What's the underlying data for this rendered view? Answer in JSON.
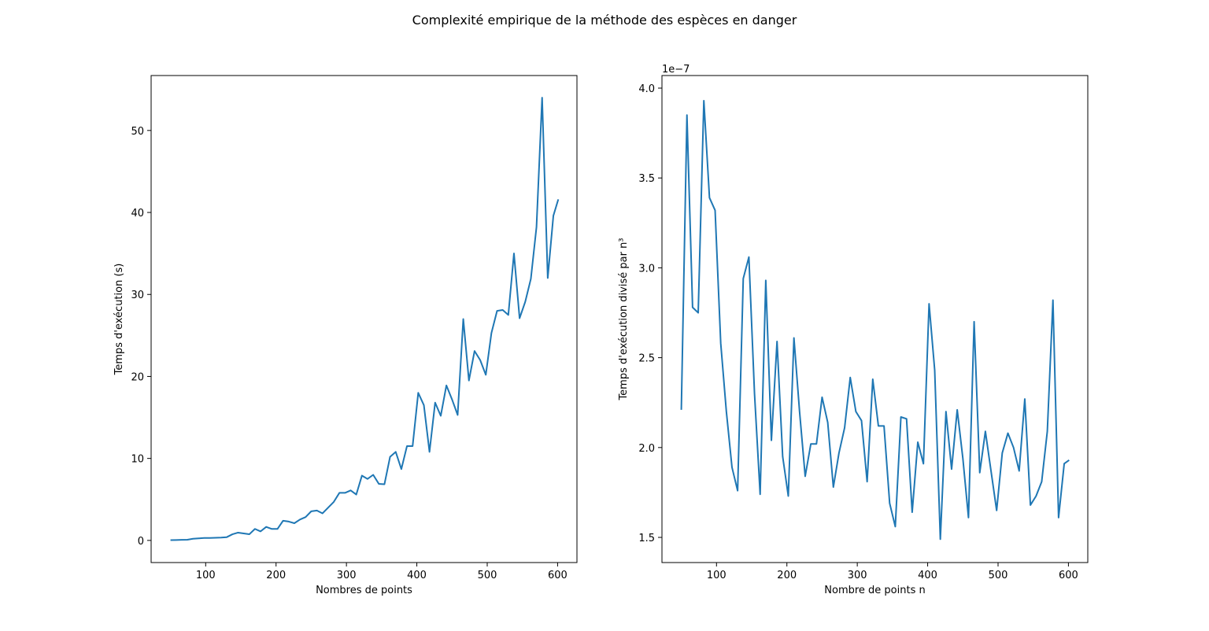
{
  "figure": {
    "suptitle": "Complexité empirique de la méthode des espèces en danger"
  },
  "chart_data": [
    {
      "type": "line",
      "xlabel": "Nombres de points",
      "ylabel": "Temps d'exécution (s)",
      "offset_text": "",
      "xlim": [
        22.5,
        627.5
      ],
      "ylim": [
        -2.7,
        56.7
      ],
      "xticks": [
        100,
        200,
        300,
        400,
        500,
        600
      ],
      "xtick_labels": [
        "100",
        "200",
        "300",
        "400",
        "500",
        "600"
      ],
      "yticks": [
        0,
        10,
        20,
        30,
        40,
        50
      ],
      "ytick_labels": [
        "0",
        "10",
        "20",
        "30",
        "40",
        "50"
      ],
      "line_color": "#1f77b4",
      "x": [
        50,
        58,
        66,
        74,
        82,
        90,
        98,
        106,
        114,
        122,
        130,
        138,
        146,
        154,
        162,
        170,
        178,
        186,
        194,
        202,
        210,
        218,
        226,
        234,
        242,
        250,
        258,
        266,
        274,
        282,
        290,
        298,
        306,
        314,
        322,
        330,
        338,
        346,
        354,
        362,
        370,
        378,
        386,
        394,
        402,
        410,
        418,
        426,
        434,
        442,
        450,
        458,
        466,
        474,
        482,
        490,
        498,
        506,
        514,
        522,
        530,
        538,
        546,
        554,
        562,
        570,
        578,
        586,
        594,
        601
      ],
      "y": [
        0.03,
        0.05,
        0.07,
        0.08,
        0.2,
        0.25,
        0.3,
        0.3,
        0.32,
        0.35,
        0.4,
        0.75,
        0.95,
        0.85,
        0.75,
        1.4,
        1.1,
        1.65,
        1.4,
        1.4,
        2.4,
        2.3,
        2.1,
        2.55,
        2.85,
        3.55,
        3.65,
        3.3,
        4.0,
        4.7,
        5.8,
        5.8,
        6.1,
        5.6,
        7.9,
        7.5,
        8.0,
        6.9,
        6.85,
        10.2,
        10.8,
        8.7,
        11.5,
        11.5,
        18.0,
        16.5,
        10.8,
        16.8,
        15.2,
        18.9,
        17.2,
        15.3,
        27.0,
        19.5,
        23.1,
        22.0,
        20.2,
        25.3,
        28.0,
        28.1,
        27.5,
        35.0,
        27.1,
        29.1,
        31.9,
        38.2,
        54.0,
        32.0,
        39.6,
        41.6
      ]
    },
    {
      "type": "line",
      "xlabel": "Nombre de points n",
      "ylabel": "Temps d'exécution divisé par n³",
      "offset_text": "1e−7",
      "xlim": [
        22.5,
        627.5
      ],
      "ylim": [
        1.36,
        4.07
      ],
      "xticks": [
        100,
        200,
        300,
        400,
        500,
        600
      ],
      "xtick_labels": [
        "100",
        "200",
        "300",
        "400",
        "500",
        "600"
      ],
      "yticks": [
        1.5,
        2.0,
        2.5,
        3.0,
        3.5,
        4.0
      ],
      "ytick_labels": [
        "1.5",
        "2.0",
        "2.5",
        "3.0",
        "3.5",
        "4.0"
      ],
      "line_color": "#1f77b4",
      "x": [
        50,
        58,
        66,
        74,
        82,
        90,
        98,
        106,
        114,
        122,
        130,
        138,
        146,
        154,
        162,
        170,
        178,
        186,
        194,
        202,
        210,
        218,
        226,
        234,
        242,
        250,
        258,
        266,
        274,
        282,
        290,
        298,
        306,
        314,
        322,
        330,
        338,
        346,
        354,
        362,
        370,
        378,
        386,
        394,
        402,
        410,
        418,
        426,
        434,
        442,
        450,
        458,
        466,
        474,
        482,
        490,
        498,
        506,
        514,
        522,
        530,
        538,
        546,
        554,
        562,
        570,
        578,
        586,
        594,
        601
      ],
      "y": [
        2.21,
        3.85,
        2.78,
        2.75,
        3.93,
        3.39,
        3.32,
        2.58,
        2.2,
        1.89,
        1.76,
        2.94,
        3.06,
        2.3,
        1.74,
        2.93,
        2.04,
        2.59,
        1.95,
        1.73,
        2.61,
        2.2,
        1.84,
        2.02,
        2.02,
        2.28,
        2.14,
        1.78,
        1.97,
        2.11,
        2.39,
        2.2,
        2.15,
        1.81,
        2.38,
        2.12,
        2.12,
        1.69,
        1.56,
        2.17,
        2.16,
        1.64,
        2.03,
        1.91,
        2.8,
        2.43,
        1.49,
        2.2,
        1.88,
        2.21,
        1.94,
        1.61,
        2.7,
        1.86,
        2.09,
        1.87,
        1.65,
        1.97,
        2.08,
        2.0,
        1.87,
        2.27,
        1.68,
        1.73,
        1.81,
        2.09,
        2.82,
        1.61,
        1.91,
        1.93
      ]
    }
  ]
}
